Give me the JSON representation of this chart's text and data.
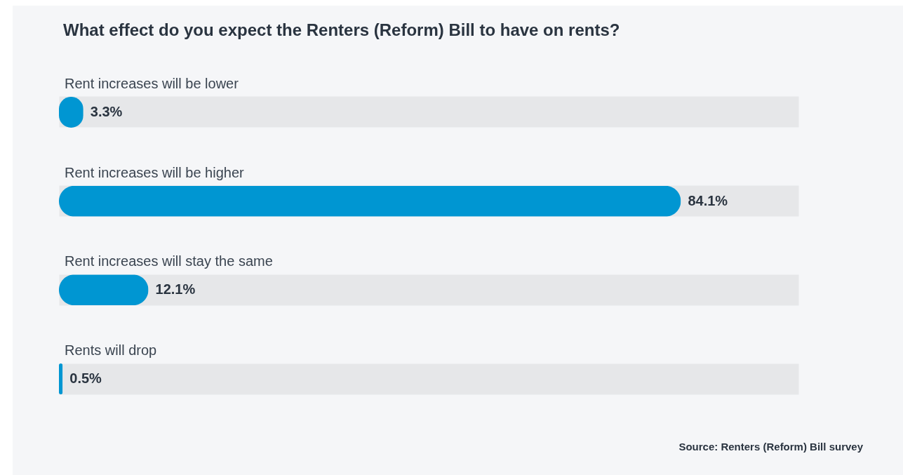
{
  "chart_data": {
    "type": "bar",
    "orientation": "horizontal",
    "title": "What effect do you expect the Renters (Reform) Bill to have on rents?",
    "categories": [
      "Rent increases will be lower",
      "Rent increases will be higher",
      "Rent increases will stay the same",
      "Rents will drop"
    ],
    "values": [
      3.3,
      84.1,
      12.1,
      0.5
    ],
    "value_labels": [
      "3.3%",
      "84.1%",
      "12.1%",
      "0.5%"
    ],
    "color": "#0096d2",
    "xlim": [
      0,
      100
    ],
    "tick_labels": false,
    "annotations": [
      "Source: Renters (Reform) Bill survey"
    ]
  }
}
